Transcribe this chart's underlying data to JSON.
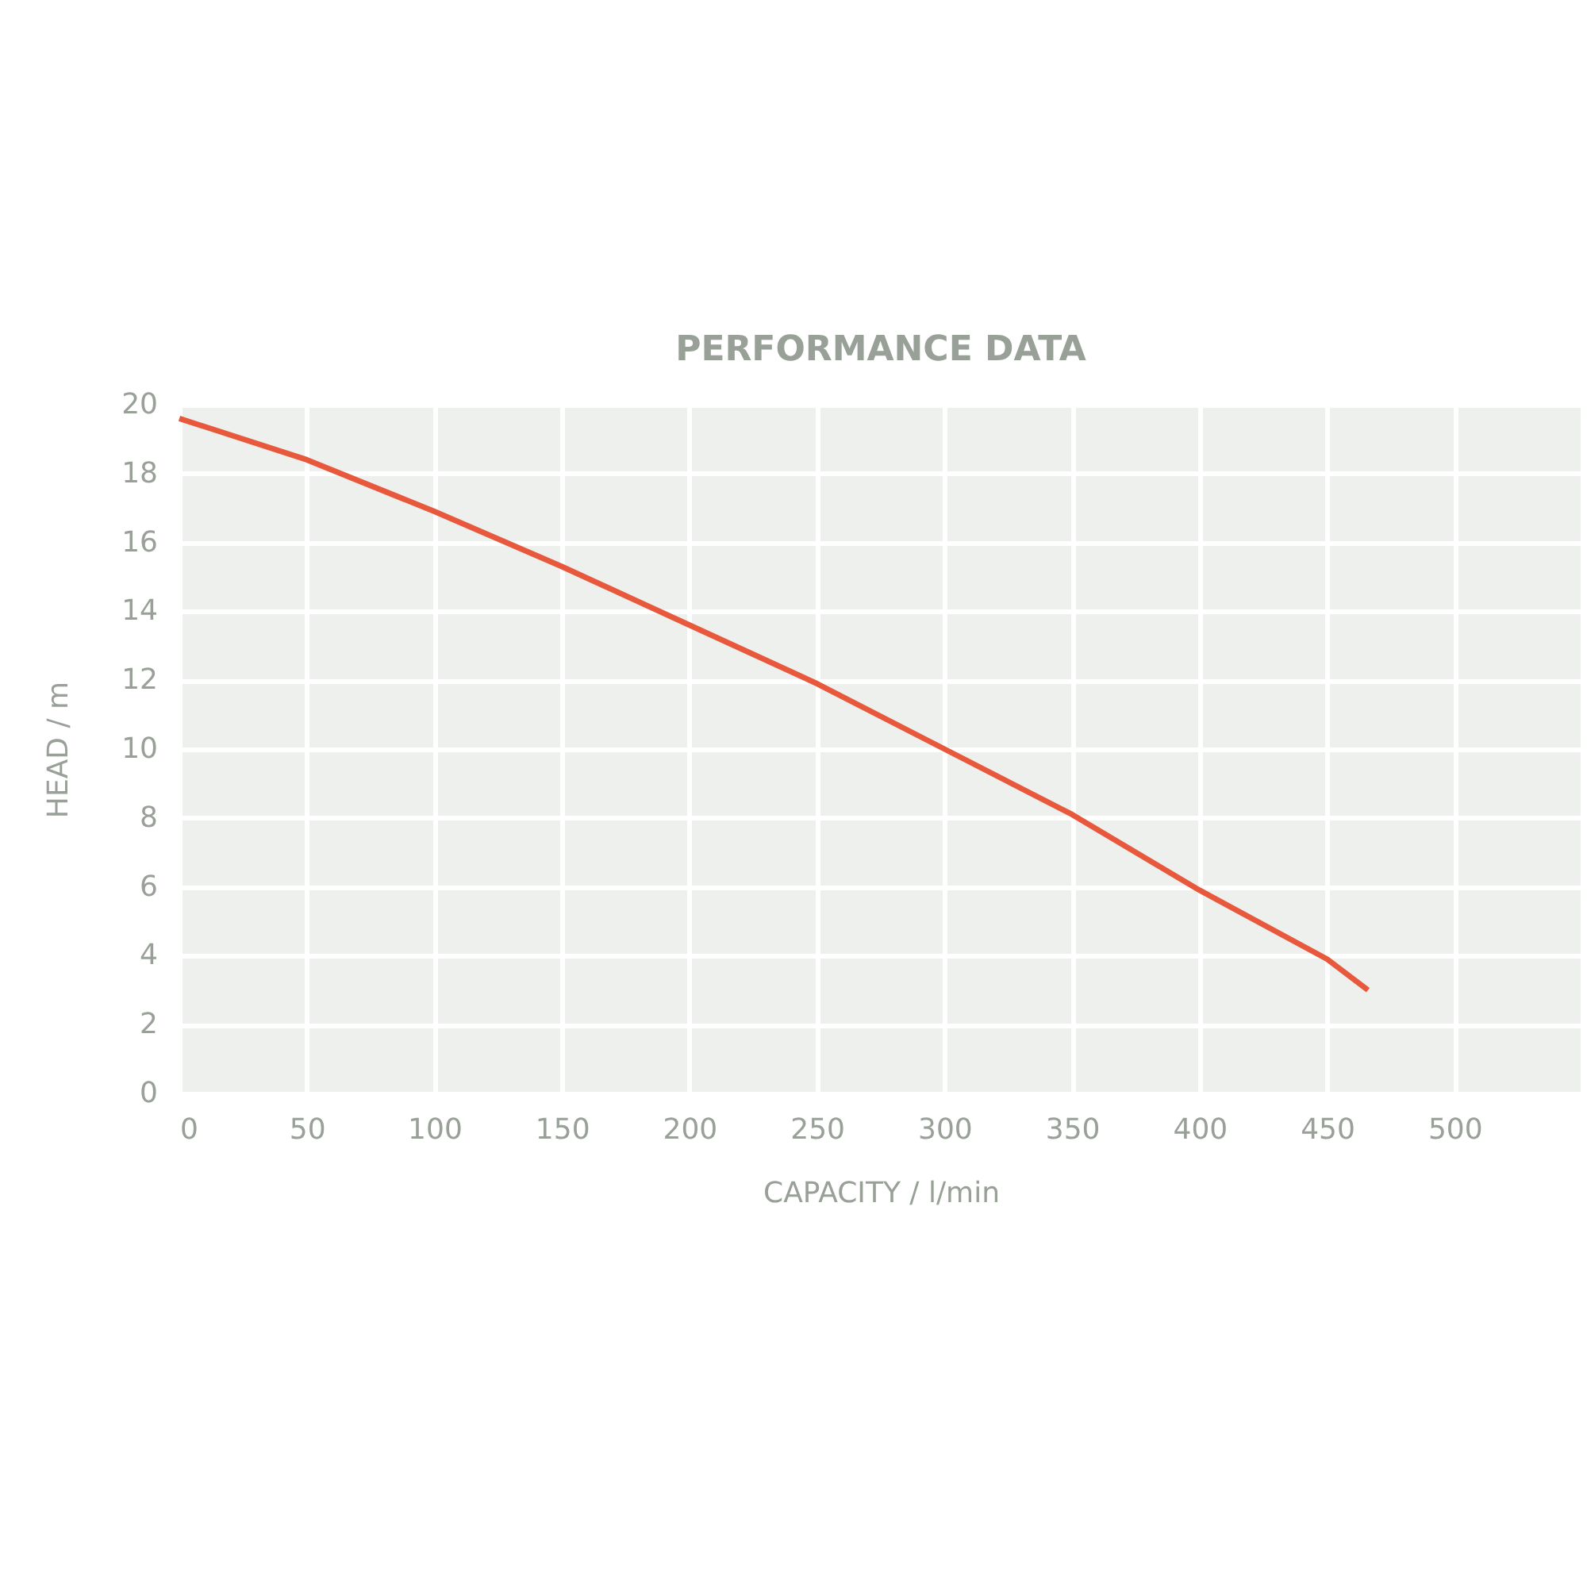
{
  "chart_data": {
    "type": "line",
    "title": "PERFORMANCE DATA",
    "xlabel": "CAPACITY / l/min",
    "ylabel": "HEAD / m",
    "x": [
      0,
      50,
      100,
      150,
      200,
      250,
      300,
      350,
      400,
      450,
      466
    ],
    "series": [
      {
        "color": "#e8583c",
        "values": [
          19.6,
          18.4,
          16.9,
          15.3,
          13.6,
          11.9,
          10.0,
          8.1,
          5.9,
          3.9,
          3.0
        ]
      }
    ],
    "xlim": [
      0,
      550
    ],
    "xticks": [
      0,
      50,
      100,
      150,
      200,
      250,
      300,
      350,
      400,
      450,
      500,
      {
        "value": 550,
        "label": null
      }
    ],
    "ylim": [
      0,
      20
    ],
    "yticks": [
      0,
      2,
      4,
      6,
      8,
      10,
      12,
      14,
      16,
      18,
      20
    ],
    "grid": true,
    "legend": false,
    "marker": "none",
    "line_style": "solid"
  }
}
